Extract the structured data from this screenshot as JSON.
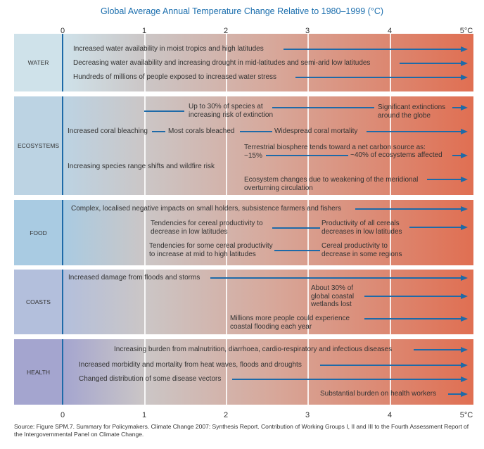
{
  "title": "Global Average Annual Temperature Change Relative to 1980–1999 (°C)",
  "axis_ticks": [
    "0",
    "1",
    "2",
    "3",
    "4",
    "5°C"
  ],
  "colors": {
    "title": "#1c6fae",
    "arrow": "#1e6aa8",
    "warm_end": "#e06f52",
    "neutral_mid": "#cbc6c6"
  },
  "sectors": [
    {
      "label": "WATER",
      "color": "#cfe2ea",
      "impacts": [
        "Increased water availability in moist tropics and high latitudes",
        "Decreasing water availability and increasing drought in mid-latitudes and semi-arid low latitudes",
        "Hundreds of millions of people exposed to increased water stress"
      ]
    },
    {
      "label": "ECOSYSTEMS",
      "color": "#bcd3e3",
      "impacts": [
        "Up to 30% of species at\nincreasing risk of extinction",
        "Significant extinctions\naround the globe",
        "Increased coral bleaching",
        "Most corals bleached",
        "Widespread coral mortality",
        "Terrestrial biosphere tends toward a net carbon source as:\n~15%",
        "~40% of ecosystems affected",
        "Increasing species range shifts and wildfire risk",
        "Ecosystem changes due to weakening of the meridional\noverturning circulation"
      ]
    },
    {
      "label": "FOOD",
      "color": "#a9cbe2",
      "impacts": [
        "Complex, localised negative impacts on small holders, subsistence farmers and fishers",
        "Tendencies for cereal productivity to\ndecrease in low latitudes",
        "Productivity of all cereals\ndecreases in low latitudes",
        "Tendencies for some cereal productivity\nto increase at mid to high latitudes",
        "Cereal productivity to\ndecrease in some regions"
      ]
    },
    {
      "label": "COASTS",
      "color": "#b3bfdc",
      "impacts": [
        "Increased damage from floods and storms",
        "About 30% of\nglobal coastal\nwetlands lost",
        "Millions more people could experience\ncoastal flooding each year"
      ]
    },
    {
      "label": "HEALTH",
      "color": "#a4a5cf",
      "impacts": [
        "Increasing burden from malnutrition, diarrhoea, cardio-respiratory and infectious diseases",
        "Increased morbidity and mortality from heat waves, floods and droughts",
        "Changed distribution of some disease vectors",
        "Substantial burden on health workers"
      ]
    }
  ],
  "source": "Source: Figure SPM.7. Summary for Policymakers. Climate Change 2007: Synthesis Report. Contribution of Working Groups I, II and III to the Fourth Assessment Report of the Intergovernmental Panel on Climate Change."
}
